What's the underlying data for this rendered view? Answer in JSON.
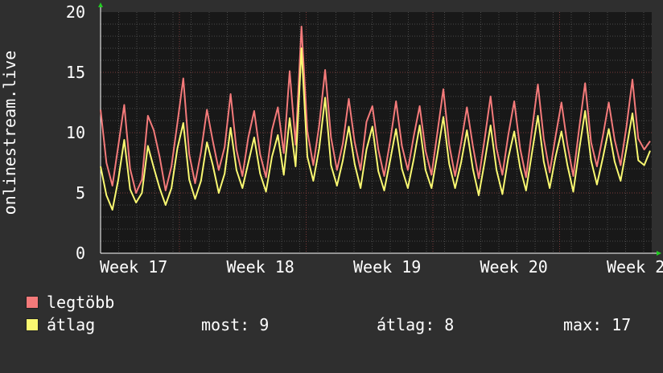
{
  "chart_data": {
    "type": "line",
    "ylabel": "onlinestream.live",
    "ylim": [
      0,
      20
    ],
    "y_ticks": [
      "0",
      "5",
      "10",
      "15",
      "20"
    ],
    "x_ticks": [
      "Week 17",
      "Week 18",
      "Week 19",
      "Week 20",
      "Week 2"
    ],
    "grid": "dotted",
    "series": [
      {
        "name": "legtöbb",
        "color": "#f47a7a",
        "values": [
          11.9,
          7.5,
          5.6,
          8.9,
          12.3,
          7.0,
          5.0,
          6.1,
          11.4,
          10.2,
          8.0,
          5.2,
          7.2,
          10.8,
          14.5,
          8.2,
          5.8,
          8.4,
          11.9,
          9.3,
          6.9,
          8.8,
          13.2,
          8.6,
          6.4,
          9.6,
          11.8,
          8.2,
          6.3,
          10.2,
          12.1,
          8.3,
          15.1,
          9.0,
          18.8,
          10.1,
          7.3,
          10.6,
          15.2,
          9.6,
          6.9,
          9.1,
          12.8,
          9.2,
          6.9,
          10.9,
          12.2,
          8.6,
          6.4,
          9.3,
          12.6,
          8.9,
          6.9,
          9.7,
          12.2,
          8.5,
          6.5,
          10.0,
          13.6,
          9.0,
          6.4,
          9.1,
          12.1,
          8.9,
          6.2,
          9.5,
          13.0,
          8.7,
          6.5,
          9.8,
          12.6,
          8.7,
          6.3,
          10.2,
          14.0,
          9.5,
          6.7,
          9.7,
          12.5,
          9.0,
          6.4,
          10.4,
          14.1,
          9.2,
          7.2,
          9.7,
          12.5,
          9.4,
          7.3,
          10.5,
          14.4,
          9.5,
          8.6,
          9.3
        ]
      },
      {
        "name": "átlag",
        "color": "#f9f871",
        "values": [
          7.2,
          4.8,
          3.6,
          6.1,
          9.4,
          5.3,
          4.2,
          5.0,
          8.9,
          7.1,
          5.4,
          4.0,
          5.4,
          8.7,
          10.8,
          6.1,
          4.5,
          6.0,
          9.2,
          7.3,
          5.0,
          6.6,
          10.4,
          6.9,
          5.4,
          7.5,
          9.6,
          6.6,
          5.1,
          8.0,
          9.8,
          6.5,
          11.2,
          7.2,
          17.0,
          8.0,
          6.0,
          8.7,
          12.9,
          7.3,
          5.6,
          7.7,
          10.5,
          7.4,
          5.4,
          8.6,
          10.5,
          6.8,
          5.2,
          7.7,
          10.3,
          7.0,
          5.4,
          7.8,
          10.6,
          6.9,
          5.4,
          8.2,
          11.3,
          7.4,
          5.4,
          7.5,
          10.2,
          7.0,
          4.8,
          7.6,
          10.6,
          6.9,
          4.9,
          7.9,
          10.1,
          7.1,
          5.2,
          8.3,
          11.4,
          7.6,
          5.4,
          8.0,
          10.1,
          7.3,
          5.1,
          8.6,
          11.8,
          7.7,
          5.7,
          7.9,
          10.3,
          7.6,
          6.0,
          8.7,
          11.6,
          7.7,
          7.3,
          8.5
        ]
      }
    ]
  },
  "legend": {
    "items": [
      {
        "label": "legtöbb",
        "color": "#f47a7a"
      },
      {
        "label": "átlag",
        "color": "#f9f871"
      }
    ]
  },
  "stats": {
    "most": "most: 9",
    "atlag": "átlag: 8",
    "max": "max: 17"
  }
}
